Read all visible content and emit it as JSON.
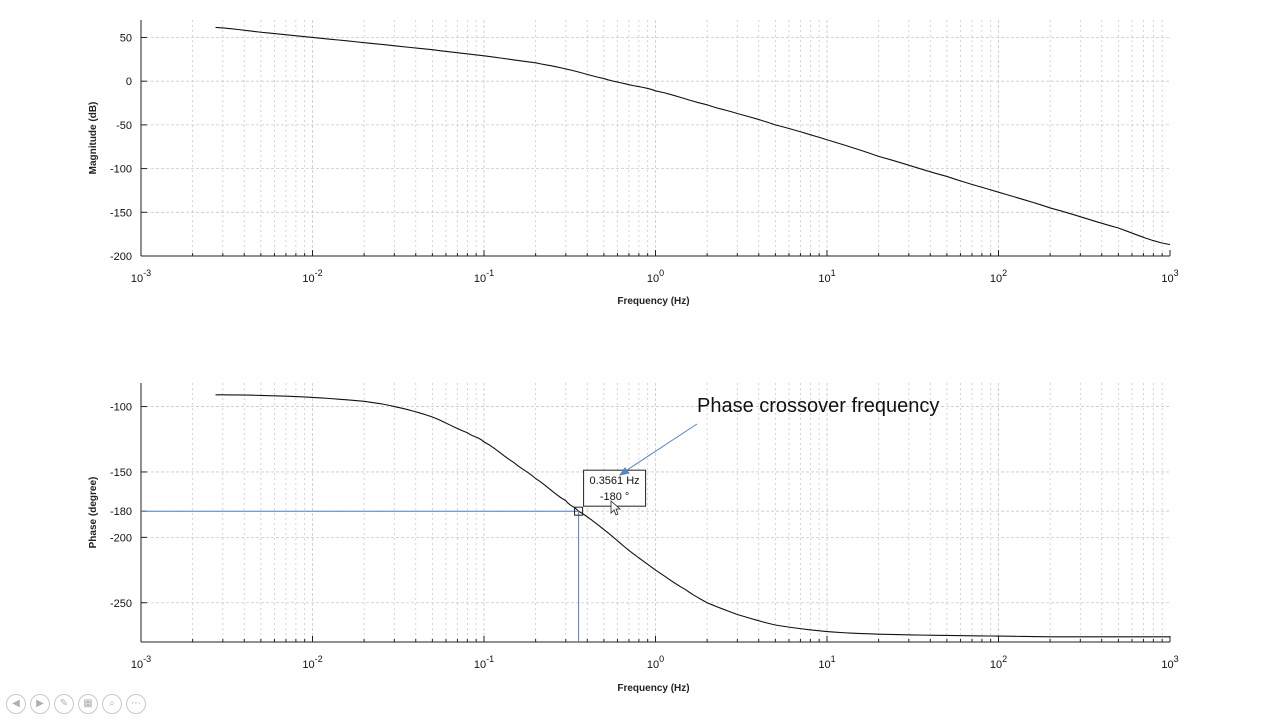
{
  "chart_data": [
    {
      "type": "line",
      "xscale": "log",
      "xlim": [
        0.001,
        1000
      ],
      "ylim": [
        -200,
        70
      ],
      "xlabel": "Frequency (Hz)",
      "ylabel": "Magnitude (dB)",
      "grid": true,
      "x_tick_labels": [
        {
          "base": "10",
          "exp": "-3"
        },
        {
          "base": "10",
          "exp": "-2"
        },
        {
          "base": "10",
          "exp": "-1"
        },
        {
          "base": "10",
          "exp": "0"
        },
        {
          "base": "10",
          "exp": "1"
        },
        {
          "base": "10",
          "exp": "2"
        },
        {
          "base": "10",
          "exp": "3"
        }
      ],
      "y_ticks": [
        50,
        0,
        -50,
        -100,
        -150,
        -200
      ],
      "y_tick_labels": [
        "50",
        "0",
        "-50",
        "-100",
        "-150",
        "-200"
      ],
      "series": [
        {
          "x": [
            0.00272,
            0.005,
            0.01,
            0.02,
            0.05,
            0.1,
            0.2,
            0.3,
            0.5,
            0.7,
            1,
            2,
            3,
            5,
            10,
            20,
            50,
            100,
            200,
            500,
            1000
          ],
          "y": [
            61.5,
            56,
            50,
            44,
            36,
            29,
            21,
            14,
            3,
            -4,
            -11,
            -27,
            -37,
            -50,
            -67,
            -86,
            -109,
            -127,
            -145,
            -168,
            -187
          ]
        }
      ]
    },
    {
      "type": "line",
      "xscale": "log",
      "xlim": [
        0.001,
        1000
      ],
      "ylim": [
        -280,
        -82
      ],
      "xlabel": "Frequency (Hz)",
      "ylabel": "Phase (degree)",
      "grid": true,
      "x_tick_labels": [
        {
          "base": "10",
          "exp": "-3"
        },
        {
          "base": "10",
          "exp": "-2"
        },
        {
          "base": "10",
          "exp": "-1"
        },
        {
          "base": "10",
          "exp": "0"
        },
        {
          "base": "10",
          "exp": "1"
        },
        {
          "base": "10",
          "exp": "2"
        },
        {
          "base": "10",
          "exp": "3"
        }
      ],
      "y_ticks": [
        -100,
        -150,
        -180,
        -200,
        -250
      ],
      "y_tick_labels": [
        "-100",
        "-150",
        "-180",
        "-200",
        "-250"
      ],
      "series": [
        {
          "x": [
            0.00272,
            0.005,
            0.01,
            0.02,
            0.03,
            0.05,
            0.08,
            0.1,
            0.15,
            0.2,
            0.3,
            0.3561,
            0.5,
            0.7,
            1,
            1.5,
            2,
            3,
            5,
            10,
            20,
            50,
            100,
            200,
            500,
            1000
          ],
          "y": [
            -91,
            -91.5,
            -93,
            -96,
            -100,
            -108,
            -120,
            -127,
            -143,
            -155,
            -172,
            -180,
            -194,
            -210,
            -225,
            -240,
            -250,
            -259,
            -267,
            -272,
            -274,
            -275,
            -275.5,
            -276,
            -276,
            -276
          ]
        }
      ],
      "crosshair": {
        "x": 0.3561,
        "y": -180
      },
      "datatip": {
        "x_text": "0.3561 Hz",
        "y_text": "-180 °"
      },
      "annotation": {
        "text": "Phase crossover frequency"
      }
    }
  ],
  "toolbar": {
    "icons": [
      "prev-icon",
      "next-icon",
      "pen-icon",
      "slides-icon",
      "zoom-icon",
      "more-icon"
    ],
    "glyphs": [
      "◀",
      "▶",
      "✎",
      "▦",
      "⌕",
      "⋯"
    ]
  }
}
